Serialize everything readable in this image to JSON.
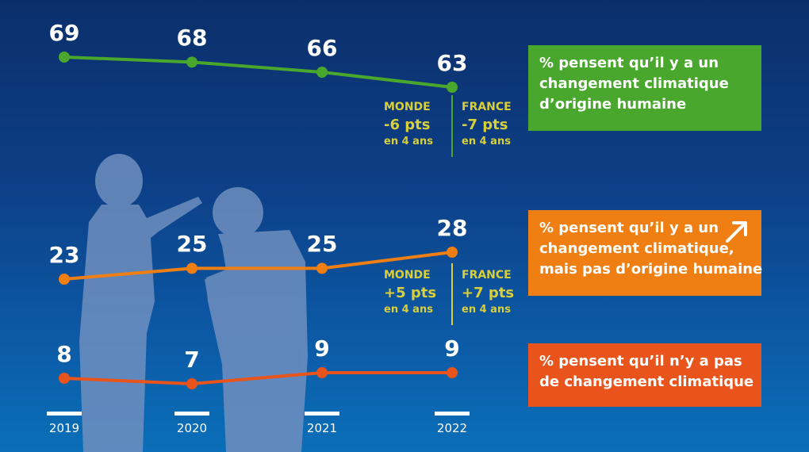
{
  "colors": {
    "line_green": "#4aa72e",
    "line_orange": "#ef7f12",
    "line_red": "#e8541c",
    "silhouette": "#6f8fbf",
    "stat_yellow": "#d9cf3a"
  },
  "chart_data": {
    "type": "line",
    "x": [
      "2019",
      "2020",
      "2021",
      "2022"
    ],
    "series": [
      {
        "name": "% pensent qu'il y a un changement climatique d'origine humaine",
        "values": [
          69,
          68,
          66,
          63
        ]
      },
      {
        "name": "% pensent qu'il y a un changement climatique, mais pas d'origine humaine",
        "values": [
          23,
          25,
          25,
          28
        ]
      },
      {
        "name": "% pensent qu'il n'y a pas de changement climatique",
        "values": [
          8,
          7,
          9,
          9
        ]
      }
    ]
  },
  "legend": {
    "green": [
      "% pensent qu’il y a un",
      "changement climatique",
      "d’origine humaine"
    ],
    "orange": [
      "% pensent qu’il y a un",
      "changement climatique,",
      "mais pas d’origine humaine"
    ],
    "red": [
      "% pensent qu’il n’y a pas",
      "de changement climatique"
    ],
    "orange_arrow_icon": "arrow-up-right-icon"
  },
  "stats": {
    "green": {
      "monde": {
        "title": "MONDE",
        "value": "-6 pts",
        "sub": "en  4 ans"
      },
      "france": {
        "title": "FRANCE",
        "value": "-7 pts",
        "sub": "en  4 ans"
      }
    },
    "orange": {
      "monde": {
        "title": "MONDE",
        "value": "+5 pts",
        "sub": "en  4 ans"
      },
      "france": {
        "title": "FRANCE",
        "value": "+7 pts",
        "sub": "en  4 ans"
      }
    }
  },
  "decoration": {
    "silhouette_icon": "two-people-pointing-silhouette-icon"
  }
}
